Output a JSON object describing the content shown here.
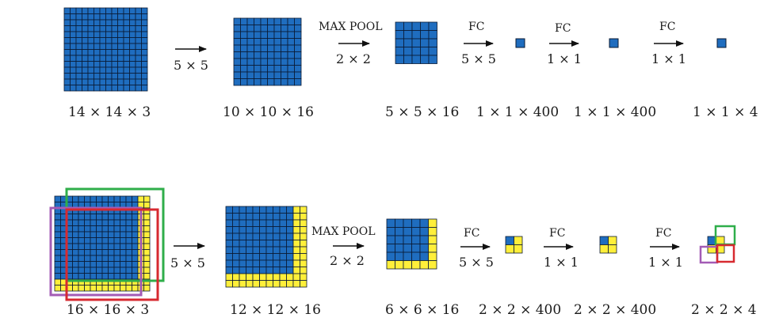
{
  "colors": {
    "blue": "#1f6dbf",
    "yellow": "#ffef3a",
    "grid": "#0a1a33",
    "green": "#2fae4a",
    "purple": "#a35bb5",
    "red": "#d72a30",
    "arrow": "#111111"
  },
  "top_row": {
    "input_dim": "14 × 14  × 3",
    "conv_op": "5 × 5",
    "conv_dim": "10 × 10 × 16",
    "pool_label": "MAX POOL",
    "pool_op": "2 × 2",
    "pool_dim": "5 × 5 × 16",
    "fc1_label": "FC",
    "fc1_op": "5 × 5",
    "fc1_dim": "1 × 1 × 400",
    "fc2_label": "FC",
    "fc2_op": "1 × 1",
    "fc2_dim": "1 × 1 × 400",
    "fc3_label": "FC",
    "fc3_op": "1 × 1",
    "out_dim": "1 × 1 × 4"
  },
  "bottom_row": {
    "input_dim": "16 × 16 × 3",
    "conv_op": "5 × 5",
    "conv_dim": "12 × 12 × 16",
    "pool_label": "MAX POOL",
    "pool_op": "2 × 2",
    "pool_dim": "6 × 6 × 16",
    "fc1_label": "FC",
    "fc1_op": "5 × 5",
    "fc1_dim": "2 × 2 × 400",
    "fc2_label": "FC",
    "fc2_op": "1 × 1",
    "fc2_dim": "2 × 2 × 400",
    "fc3_label": "FC",
    "fc3_op": "1 × 1",
    "out_dim": "2 × 2 × 4"
  }
}
